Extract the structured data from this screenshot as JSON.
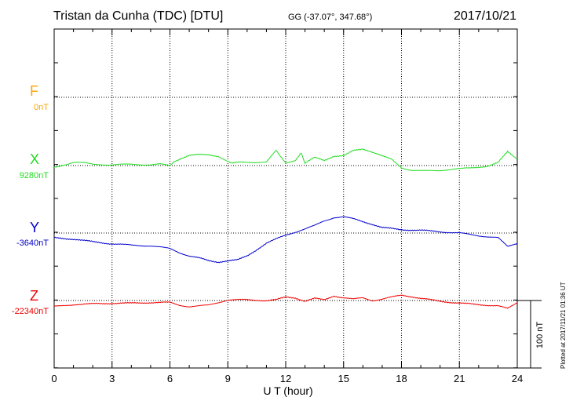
{
  "header": {
    "station": "Tristan da Cunha (TDC)  [DTU]",
    "coords": "GG (-37.07°, 347.68°)",
    "date": "2017/10/21"
  },
  "footer": {
    "plotted": "Plotted at 2017/11/21 01:36 UT"
  },
  "chart_data": {
    "type": "line",
    "title": "Tristan da Cunha (TDC)  [DTU]",
    "xlabel": "U T (hour)",
    "ylabel": "",
    "x_ticks": [
      "0",
      "3",
      "6",
      "9",
      "12",
      "15",
      "18",
      "21",
      "24"
    ],
    "xlim": [
      0,
      24
    ],
    "grid": true,
    "scale_bar_label": "100 nT",
    "scale_bar_nT": 100,
    "colors": {
      "F": "#ffa500",
      "X": "#22dd22",
      "Y": "#0000cc",
      "Z": "#ee0000"
    },
    "series": [
      {
        "name": "F",
        "baseline_label": "0nT",
        "color": "#ffa500",
        "x": [],
        "y": []
      },
      {
        "name": "X",
        "baseline_label": "9280nT",
        "color": "#22dd22",
        "x": [
          0,
          0.5,
          1,
          1.5,
          2,
          3,
          4,
          5,
          5.5,
          6,
          6.2,
          6.5,
          7,
          7.5,
          8,
          8.5,
          9,
          9.2,
          10,
          11,
          11.5,
          11.7,
          12,
          12.5,
          12.8,
          13,
          13.5,
          14,
          14.5,
          15,
          15.5,
          16,
          16.5,
          17,
          17.5,
          18,
          18.5,
          19,
          20,
          21,
          22,
          22.5,
          23,
          23.5,
          24
        ],
        "y": [
          -3,
          1,
          5,
          4,
          2,
          1,
          2,
          1,
          2,
          0,
          5,
          10,
          15,
          16,
          16,
          14,
          6,
          4,
          5,
          5,
          22,
          14,
          4,
          8,
          18,
          3,
          12,
          8,
          14,
          14,
          22,
          25,
          20,
          14,
          9,
          -3,
          -7,
          -8,
          -7,
          -5,
          -2,
          -1,
          4,
          21,
          10
        ]
      },
      {
        "name": "Y",
        "baseline_label": "-3640nT",
        "color": "#0000cc",
        "x": [
          0,
          0.5,
          1,
          1.5,
          2,
          3,
          4,
          5,
          6,
          6.5,
          7,
          7.5,
          8,
          8.5,
          9,
          9.5,
          10,
          11,
          12,
          13,
          13.5,
          14,
          14.5,
          15,
          15.5,
          16,
          16.5,
          17,
          18,
          19,
          20,
          21,
          22,
          23,
          23.5,
          24
        ],
        "y": [
          -7,
          -8,
          -9,
          -11,
          -13,
          -16,
          -18,
          -19,
          -23,
          -29,
          -34,
          -37,
          -41,
          -43,
          -41,
          -40,
          -34,
          -15,
          -3,
          6,
          11,
          18,
          23,
          24,
          21,
          17,
          13,
          8,
          5,
          4,
          2,
          0,
          -4,
          -7,
          -20,
          -15
        ]
      },
      {
        "name": "Z",
        "baseline_label": "-22340nT",
        "color": "#ee0000",
        "x": [
          0,
          1,
          2,
          3,
          4,
          5,
          6,
          6.5,
          7,
          8,
          9,
          10,
          11,
          11.5,
          12,
          12.5,
          13,
          13.5,
          14,
          14.5,
          15,
          15.5,
          16,
          16.5,
          17,
          17.5,
          18,
          18.5,
          19,
          20,
          21,
          22,
          23,
          23.5,
          24
        ],
        "y": [
          -9,
          -6,
          -5,
          -4,
          -4,
          -3,
          -3,
          -7,
          -9,
          -7,
          1,
          1,
          0,
          1,
          5,
          4,
          -1,
          3,
          1,
          7,
          4,
          2,
          4,
          0,
          2,
          5,
          8,
          6,
          3,
          -1,
          -4,
          -6,
          -8,
          -12,
          -3
        ]
      }
    ]
  }
}
